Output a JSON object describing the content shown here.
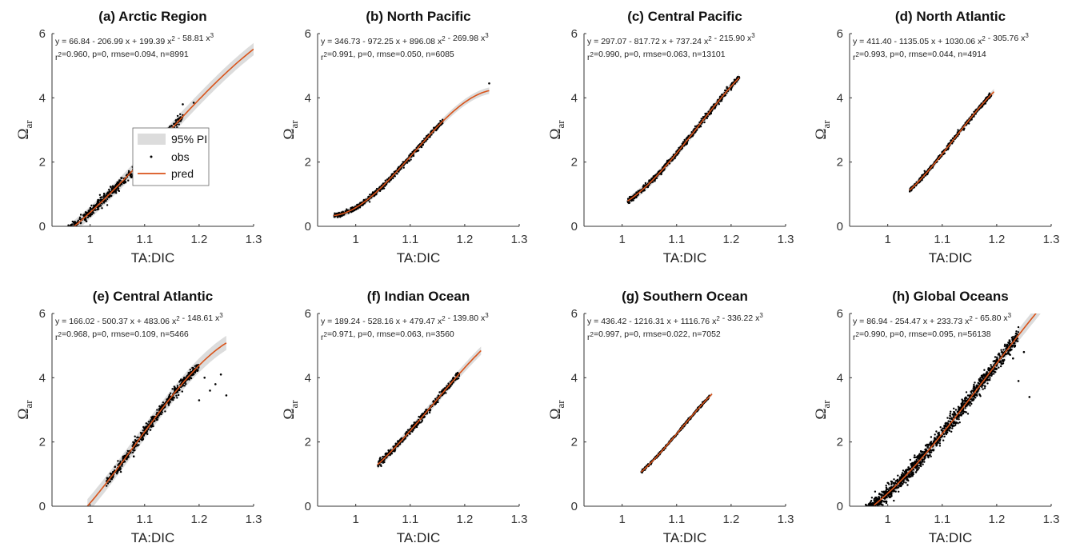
{
  "chart_data": [
    {
      "type": "scatter",
      "title": "(a) Arctic Region",
      "xlabel": "TA:DIC",
      "ylabel": "Ω",
      "ylabel_sub": "ar",
      "xlim": [
        0.93,
        1.3
      ],
      "ylim": [
        0,
        6
      ],
      "xticks": [
        1,
        1.1,
        1.2,
        1.3
      ],
      "xtick_labels": [
        "1",
        "1.1",
        "1.2",
        "1.3"
      ],
      "yticks": [
        0,
        2,
        4,
        6
      ],
      "ytick_labels": [
        "0",
        "2",
        "4",
        "6"
      ],
      "equation": "y = 66.84 - 206.99 x + 199.39 x² - 58.81 x³",
      "stats": "r²=0.960, p=0, rmse=0.094, n=8991",
      "coef": [
        66.84,
        -206.99,
        199.39,
        -58.81
      ],
      "fit_range": [
        0.97,
        1.3
      ],
      "obs_range": [
        0.94,
        1.17
      ],
      "pi_halfwidth": 0.19,
      "spread": 0.16,
      "n_points": 650,
      "outliers": [
        [
          1.17,
          3.8
        ],
        [
          1.19,
          3.85
        ]
      ],
      "legend": {
        "pi": "95% PI",
        "obs": "obs",
        "pred": "pred"
      }
    },
    {
      "type": "scatter",
      "title": "(b) North Pacific",
      "xlabel": "TA:DIC",
      "ylabel": "Ω",
      "ylabel_sub": "ar",
      "xlim": [
        0.93,
        1.3
      ],
      "ylim": [
        0,
        6
      ],
      "xticks": [
        1,
        1.1,
        1.2,
        1.3
      ],
      "xtick_labels": [
        "1",
        "1.1",
        "1.2",
        "1.3"
      ],
      "yticks": [
        0,
        2,
        4,
        6
      ],
      "ytick_labels": [
        "0",
        "2",
        "4",
        "6"
      ],
      "equation": "y = 346.73 - 972.25 x + 896.08 x² - 269.98 x³",
      "stats": "r²=0.991, p=0, rmse=0.050, n=6085",
      "coef": [
        346.73,
        -972.25,
        896.08,
        -269.98
      ],
      "fit_range": [
        0.96,
        1.245
      ],
      "obs_range": [
        0.96,
        1.16
      ],
      "pi_halfwidth": 0.1,
      "spread": 0.08,
      "n_points": 550,
      "outliers": [
        [
          1.245,
          4.45
        ]
      ]
    },
    {
      "type": "scatter",
      "title": "(c) Central Pacific",
      "xlabel": "TA:DIC",
      "ylabel": "Ω",
      "ylabel_sub": "ar",
      "xlim": [
        0.93,
        1.3
      ],
      "ylim": [
        0,
        6
      ],
      "xticks": [
        1,
        1.1,
        1.2,
        1.3
      ],
      "xtick_labels": [
        "1",
        "1.1",
        "1.2",
        "1.3"
      ],
      "yticks": [
        0,
        2,
        4,
        6
      ],
      "ytick_labels": [
        "0",
        "2",
        "4",
        "6"
      ],
      "equation": "y = 297.07 - 817.72 x + 737.24 x² - 215.90 x³",
      "stats": "r²=0.990, p=0, rmse=0.063, n=13101",
      "coef": [
        297.07,
        -817.72,
        737.24,
        -215.9
      ],
      "fit_range": [
        1.01,
        1.215
      ],
      "obs_range": [
        1.01,
        1.215
      ],
      "pi_halfwidth": 0.12,
      "spread": 0.09,
      "n_points": 700,
      "outliers": []
    },
    {
      "type": "scatter",
      "title": "(d) North Atlantic",
      "xlabel": "TA:DIC",
      "ylabel": "Ω",
      "ylabel_sub": "ar",
      "xlim": [
        0.93,
        1.3
      ],
      "ylim": [
        0,
        6
      ],
      "xticks": [
        1,
        1.1,
        1.2,
        1.3
      ],
      "xtick_labels": [
        "1",
        "1.1",
        "1.2",
        "1.3"
      ],
      "yticks": [
        0,
        2,
        4,
        6
      ],
      "ytick_labels": [
        "0",
        "2",
        "4",
        "6"
      ],
      "equation": "y = 411.40 - 1135.05 x + 1030.06 x² - 305.76 x³",
      "stats": "r²=0.993, p=0, rmse=0.044, n=4914",
      "coef": [
        411.4,
        -1135.05,
        1030.06,
        -305.76
      ],
      "fit_range": [
        1.04,
        1.195
      ],
      "obs_range": [
        1.04,
        1.19
      ],
      "pi_halfwidth": 0.09,
      "spread": 0.07,
      "n_points": 500,
      "outliers": []
    },
    {
      "type": "scatter",
      "title": "(e) Central Atlantic",
      "xlabel": "TA:DIC",
      "ylabel": "Ω",
      "ylabel_sub": "ar",
      "xlim": [
        0.93,
        1.3
      ],
      "ylim": [
        0,
        6
      ],
      "xticks": [
        1,
        1.1,
        1.2,
        1.3
      ],
      "xtick_labels": [
        "1",
        "1.1",
        "1.2",
        "1.3"
      ],
      "yticks": [
        0,
        2,
        4,
        6
      ],
      "ytick_labels": [
        "0",
        "2",
        "4",
        "6"
      ],
      "equation": "y = 166.02 - 500.37 x + 483.06 x² - 148.61 x³",
      "stats": "r²=0.968, p=0, rmse=0.109, n=5466",
      "coef": [
        166.02,
        -500.37,
        483.06,
        -148.61
      ],
      "fit_range": [
        0.995,
        1.25
      ],
      "obs_range": [
        1.03,
        1.2
      ],
      "pi_halfwidth": 0.22,
      "spread": 0.16,
      "n_points": 550,
      "outliers": [
        [
          1.2,
          3.3
        ],
        [
          1.22,
          3.6
        ],
        [
          1.24,
          4.1
        ],
        [
          1.25,
          3.45
        ],
        [
          1.21,
          4.0
        ],
        [
          1.23,
          3.8
        ],
        [
          1.08,
          1.55
        ]
      ]
    },
    {
      "type": "scatter",
      "title": "(f) Indian Ocean",
      "xlabel": "TA:DIC",
      "ylabel": "Ω",
      "ylabel_sub": "ar",
      "xlim": [
        0.93,
        1.3
      ],
      "ylim": [
        0,
        6
      ],
      "xticks": [
        1,
        1.1,
        1.2,
        1.3
      ],
      "xtick_labels": [
        "1",
        "1.1",
        "1.2",
        "1.3"
      ],
      "yticks": [
        0,
        2,
        4,
        6
      ],
      "ytick_labels": [
        "0",
        "2",
        "4",
        "6"
      ],
      "equation": "y = 189.24 - 528.16 x + 479.47 x² - 139.80 x³",
      "stats": "r²=0.971, p=0, rmse=0.063, n=3560",
      "coef": [
        189.24,
        -528.16,
        479.47,
        -139.8
      ],
      "fit_range": [
        1.04,
        1.23
      ],
      "obs_range": [
        1.04,
        1.19
      ],
      "pi_halfwidth": 0.13,
      "spread": 0.1,
      "n_points": 450,
      "outliers": []
    },
    {
      "type": "scatter",
      "title": "(g) Southern Ocean",
      "xlabel": "TA:DIC",
      "ylabel": "Ω",
      "ylabel_sub": "ar",
      "xlim": [
        0.93,
        1.3
      ],
      "ylim": [
        0,
        6
      ],
      "xticks": [
        1,
        1.1,
        1.2,
        1.3
      ],
      "xtick_labels": [
        "1",
        "1.1",
        "1.2",
        "1.3"
      ],
      "yticks": [
        0,
        2,
        4,
        6
      ],
      "ytick_labels": [
        "0",
        "2",
        "4",
        "6"
      ],
      "equation": "y = 436.42 - 1216.31 x + 1116.76 x² - 336.22 x³",
      "stats": "r²=0.997, p=0, rmse=0.022, n=7052",
      "coef": [
        436.42,
        -1216.31,
        1116.76,
        -336.22
      ],
      "fit_range": [
        1.035,
        1.165
      ],
      "obs_range": [
        1.035,
        1.16
      ],
      "pi_halfwidth": 0.05,
      "spread": 0.04,
      "n_points": 400,
      "outliers": []
    },
    {
      "type": "scatter",
      "title": "(h) Global Oceans",
      "xlabel": "TA:DIC",
      "ylabel": "Ω",
      "ylabel_sub": "ar",
      "xlim": [
        0.93,
        1.3
      ],
      "ylim": [
        0,
        6
      ],
      "xticks": [
        1,
        1.1,
        1.2,
        1.3
      ],
      "xtick_labels": [
        "1",
        "1.1",
        "1.2",
        "1.3"
      ],
      "yticks": [
        0,
        2,
        4,
        6
      ],
      "ytick_labels": [
        "0",
        "2",
        "4",
        "6"
      ],
      "equation": "y = 86.94 - 254.47 x + 233.73 x² - 65.80 x³",
      "stats": "r²=0.990, p=0, rmse=0.095, n=56138",
      "coef": [
        86.94,
        -254.47,
        233.73,
        -65.8
      ],
      "fit_range": [
        0.975,
        1.28
      ],
      "obs_range": [
        0.94,
        1.24
      ],
      "pi_halfwidth": 0.19,
      "spread": 0.24,
      "n_points": 1400,
      "outliers": [
        [
          1.25,
          4.8
        ],
        [
          1.26,
          3.4
        ],
        [
          1.24,
          3.9
        ],
        [
          1.22,
          5.0
        ],
        [
          1.23,
          4.6
        ]
      ]
    }
  ]
}
